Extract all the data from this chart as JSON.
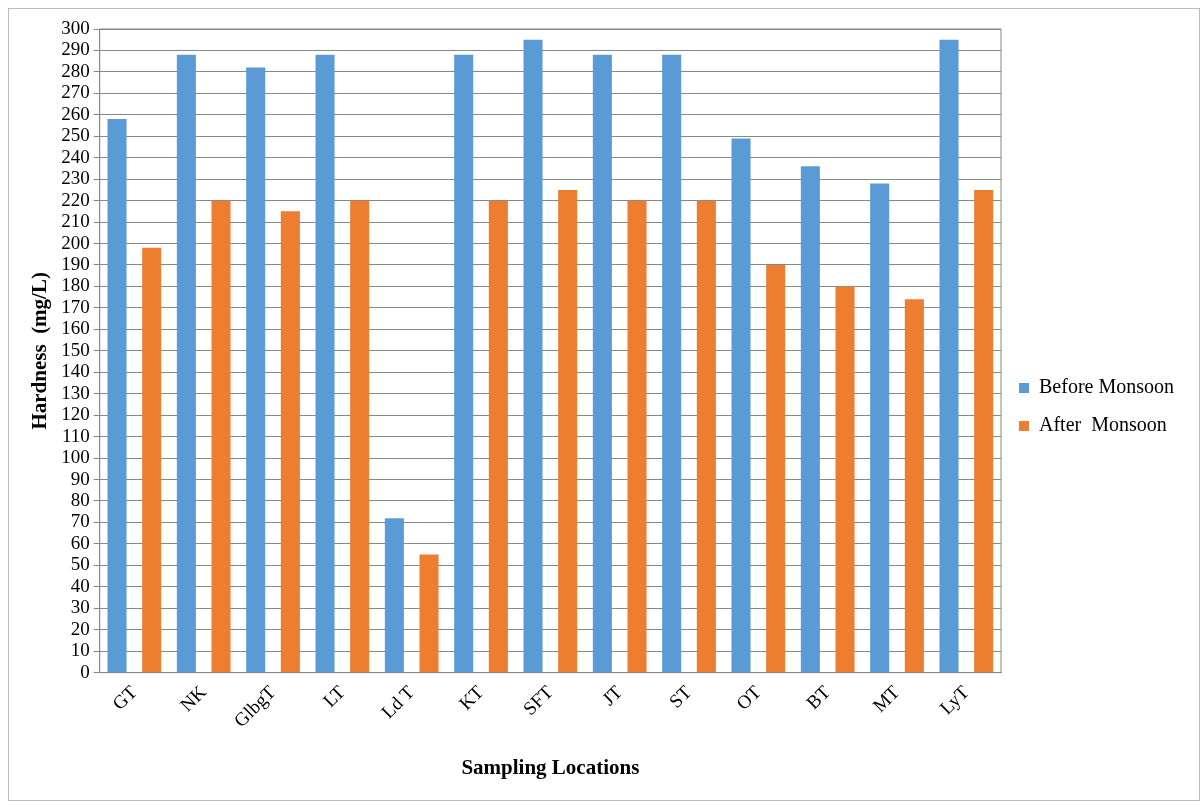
{
  "chart_data": {
    "type": "bar",
    "xlabel": "Sampling Locations",
    "ylabel": "Hardness  (mg/L)",
    "categories": [
      "GT",
      "NK",
      "GlbgT",
      "LT",
      "Ld T",
      "KT",
      "SFT",
      "JT",
      "ST",
      "OT",
      "BT",
      "MT",
      "LyT"
    ],
    "series": [
      {
        "name": "Before Monsoon",
        "color": "#5b9bd5",
        "values": [
          258,
          288,
          282,
          288,
          72,
          288,
          295,
          288,
          288,
          249,
          236,
          228,
          295
        ]
      },
      {
        "name": "After  Monsoon",
        "color": "#ed7d31",
        "values": [
          198,
          220,
          215,
          220,
          55,
          220,
          225,
          220,
          220,
          190,
          180,
          174,
          225
        ]
      }
    ],
    "ylim": [
      0,
      300
    ],
    "yticks": [
      0,
      10,
      20,
      30,
      40,
      50,
      60,
      70,
      80,
      90,
      100,
      110,
      120,
      130,
      140,
      150,
      160,
      170,
      180,
      190,
      200,
      210,
      220,
      230,
      240,
      250,
      260,
      270,
      280,
      290,
      300
    ],
    "grid": "y",
    "legend": "right"
  }
}
